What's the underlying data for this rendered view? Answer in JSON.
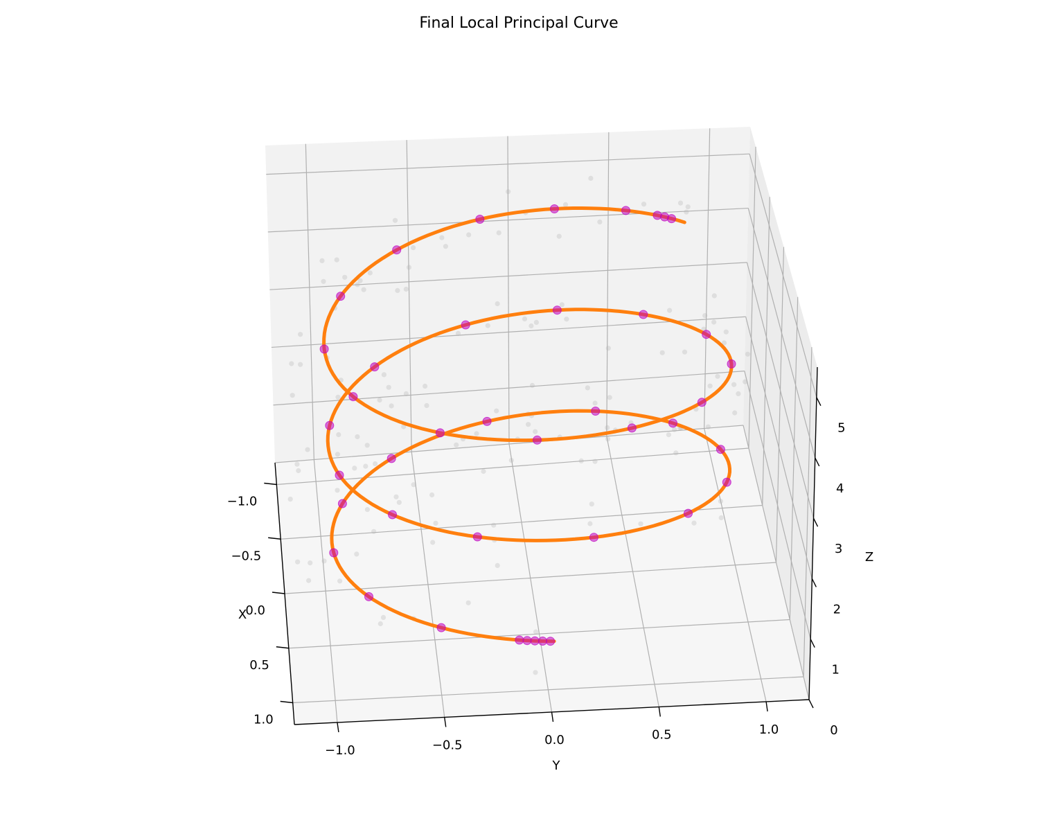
{
  "chart_data": {
    "type": "scatter",
    "projection": "3d",
    "title": "Final Local Principal Curve",
    "xlabel": "X",
    "ylabel": "Y",
    "zlabel": "Z",
    "xlim": [
      -1.2,
      1.2
    ],
    "ylim": [
      -1.2,
      1.2
    ],
    "zlim": [
      0,
      5.5
    ],
    "x_ticks": [
      "−1.0",
      "−0.5",
      "0.0",
      "0.5",
      "1.0"
    ],
    "y_ticks": [
      "−1.0",
      "−0.5",
      "0.0",
      "0.5",
      "1.0"
    ],
    "z_ticks": [
      "0",
      "1",
      "2",
      "3",
      "4",
      "5"
    ],
    "grid": true,
    "colors": {
      "curve": "#ff7f0e",
      "points": "#c000c0",
      "noise": "#b0b0b0",
      "pane": "#f2f2f2",
      "grid": "#b0b0b0"
    },
    "series": [
      {
        "type": "line",
        "description": "principal curve (helix)",
        "t_range": [
          1.6,
          19.2
        ],
        "x": "0.78*sin(0.95*t)",
        "y": "0.96*cos(0.95*t)",
        "z": "0.275*t - 0.02"
      },
      {
        "type": "scatter",
        "description": "curve points",
        "t": [
          1.62,
          1.66,
          1.7,
          1.74,
          1.78,
          2.2,
          2.7,
          3.2,
          3.7,
          4.2,
          4.8,
          5.4,
          5.9,
          6.4,
          6.9,
          7.4,
          8.0,
          8.6,
          9.1,
          9.6,
          10.1,
          10.7,
          11.3,
          11.8,
          12.3,
          12.8,
          13.3,
          13.9,
          14.4,
          14.9,
          15.4,
          16.0,
          16.5,
          17.0,
          17.5,
          18.0,
          18.4,
          18.8,
          19.0,
          19.05,
          19.1
        ]
      }
    ],
    "noise_points": 140
  }
}
